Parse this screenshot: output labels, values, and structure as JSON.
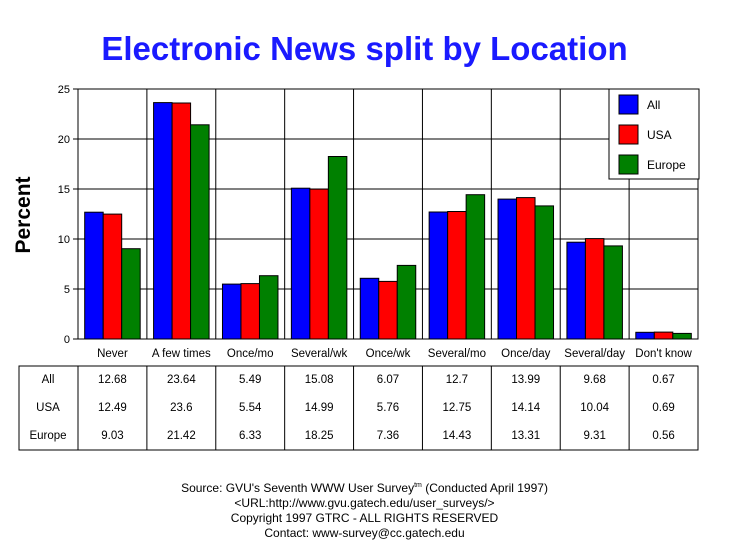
{
  "chart_data": {
    "type": "bar",
    "title": "Electronic News split by Location",
    "ylabel": "Percent",
    "xlabel": "",
    "ylim": [
      0,
      25
    ],
    "yticks": [
      0,
      5,
      10,
      15,
      20,
      25
    ],
    "grid": true,
    "legend_position": "top-right",
    "categories": [
      "Never",
      "A few times",
      "Once/mo",
      "Several/wk",
      "Once/wk",
      "Several/mo",
      "Once/day",
      "Several/day",
      "Don't know"
    ],
    "series": [
      {
        "name": "All",
        "color": "#0000ff",
        "values": [
          12.68,
          23.64,
          5.49,
          15.08,
          6.07,
          12.7,
          13.99,
          9.68,
          0.67
        ]
      },
      {
        "name": "USA",
        "color": "#ff0000",
        "values": [
          12.49,
          23.6,
          5.54,
          14.99,
          5.76,
          12.75,
          14.14,
          10.04,
          0.69
        ]
      },
      {
        "name": "Europe",
        "color": "#008000",
        "values": [
          9.03,
          21.42,
          6.33,
          18.25,
          7.36,
          14.43,
          13.31,
          9.31,
          0.56
        ]
      }
    ],
    "table": {
      "rows": [
        {
          "label": "All",
          "values": [
            "12.68",
            "23.64",
            "5.49",
            "15.08",
            "6.07",
            "12.7",
            "13.99",
            "9.68",
            "0.67"
          ]
        },
        {
          "label": "USA",
          "values": [
            "12.49",
            "23.6",
            "5.54",
            "14.99",
            "5.76",
            "12.75",
            "14.14",
            "10.04",
            "0.69"
          ]
        },
        {
          "label": "Europe",
          "values": [
            "9.03",
            "21.42",
            "6.33",
            "18.25",
            "7.36",
            "14.43",
            "13.31",
            "9.31",
            "0.56"
          ]
        }
      ]
    }
  },
  "footer": {
    "source_prefix": "Source: GVU's Seventh WWW User Survey",
    "source_sup": "tm",
    "source_suffix": " (Conducted April 1997)",
    "url": "<URL:http://www.gvu.gatech.edu/user_surveys/>",
    "copyright": "Copyright 1997 GTRC - ALL RIGHTS RESERVED",
    "contact": "Contact: www-survey@cc.gatech.edu"
  }
}
